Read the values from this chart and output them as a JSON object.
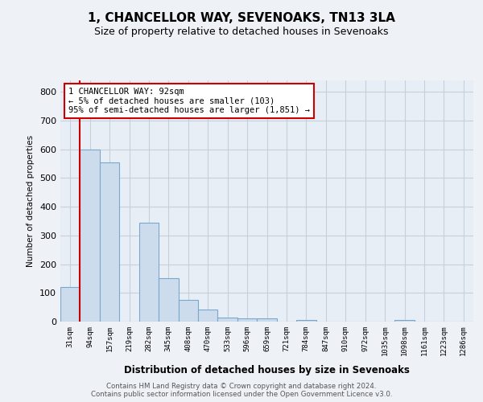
{
  "title": "1, CHANCELLOR WAY, SEVENOAKS, TN13 3LA",
  "subtitle": "Size of property relative to detached houses in Sevenoaks",
  "xlabel": "Distribution of detached houses by size in Sevenoaks",
  "ylabel": "Number of detached properties",
  "bar_labels": [
    "31sqm",
    "94sqm",
    "157sqm",
    "219sqm",
    "282sqm",
    "345sqm",
    "408sqm",
    "470sqm",
    "533sqm",
    "596sqm",
    "659sqm",
    "721sqm",
    "784sqm",
    "847sqm",
    "910sqm",
    "972sqm",
    "1035sqm",
    "1098sqm",
    "1161sqm",
    "1223sqm",
    "1286sqm"
  ],
  "bar_values": [
    120,
    600,
    555,
    0,
    345,
    150,
    75,
    43,
    15,
    10,
    10,
    0,
    5,
    0,
    0,
    0,
    0,
    5,
    0,
    0,
    0
  ],
  "bar_color": "#ccdcec",
  "bar_edge_color": "#7aa8cc",
  "marker_color": "#cc0000",
  "annotation_text": "1 CHANCELLOR WAY: 92sqm\n← 5% of detached houses are smaller (103)\n95% of semi-detached houses are larger (1,851) →",
  "annotation_box_color": "#ffffff",
  "annotation_box_edge": "#cc0000",
  "ylim": [
    0,
    840
  ],
  "yticks": [
    0,
    100,
    200,
    300,
    400,
    500,
    600,
    700,
    800
  ],
  "footer": "Contains HM Land Registry data © Crown copyright and database right 2024.\nContains public sector information licensed under the Open Government Licence v3.0.",
  "bg_color": "#eef2f7",
  "plot_bg_color": "#e8eef5",
  "grid_color": "#c5d0dc",
  "title_fontsize": 11,
  "subtitle_fontsize": 9
}
